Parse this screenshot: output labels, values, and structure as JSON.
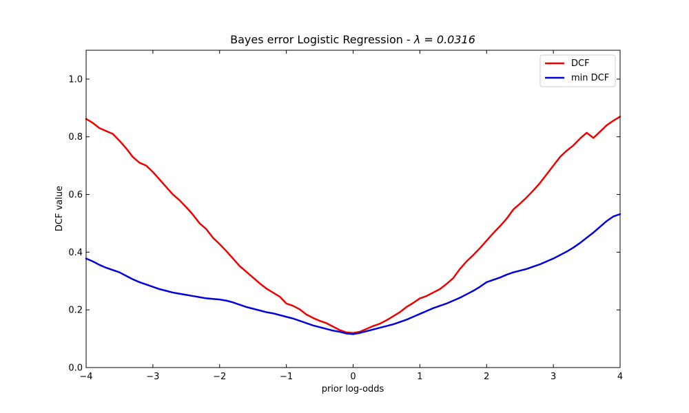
{
  "chart_data": {
    "type": "line",
    "title": "Bayes error Logistic Regression - ",
    "title_math": "λ = 0.0316",
    "xlabel": "prior log-odds",
    "ylabel": "DCF value",
    "xlim": [
      -4,
      4
    ],
    "ylim": [
      0,
      1.1
    ],
    "xticks": [
      -4,
      -3,
      -2,
      -1,
      0,
      1,
      2,
      3,
      4
    ],
    "xtick_labels": [
      "−4",
      "−3",
      "−2",
      "−1",
      "0",
      "1",
      "2",
      "3",
      "4"
    ],
    "yticks": [
      0.0,
      0.2,
      0.4,
      0.6,
      0.8,
      1.0
    ],
    "ytick_labels": [
      "0.0",
      "0.2",
      "0.4",
      "0.6",
      "0.8",
      "1.0"
    ],
    "grid": false,
    "legend_position": "top-right",
    "series": [
      {
        "name": "DCF",
        "color": "#ee0000",
        "x": [
          -4.0,
          -3.9,
          -3.8,
          -3.7,
          -3.6,
          -3.5,
          -3.4,
          -3.3,
          -3.2,
          -3.1,
          -3.0,
          -2.9,
          -2.8,
          -2.7,
          -2.6,
          -2.5,
          -2.4,
          -2.3,
          -2.2,
          -2.1,
          -2.0,
          -1.9,
          -1.8,
          -1.7,
          -1.6,
          -1.5,
          -1.4,
          -1.3,
          -1.2,
          -1.1,
          -1.0,
          -0.9,
          -0.8,
          -0.7,
          -0.6,
          -0.5,
          -0.4,
          -0.3,
          -0.2,
          -0.1,
          0.0,
          0.1,
          0.2,
          0.3,
          0.4,
          0.5,
          0.6,
          0.7,
          0.8,
          0.9,
          1.0,
          1.1,
          1.2,
          1.3,
          1.4,
          1.5,
          1.6,
          1.7,
          1.8,
          1.9,
          2.0,
          2.1,
          2.2,
          2.3,
          2.4,
          2.5,
          2.6,
          2.7,
          2.8,
          2.9,
          3.0,
          3.1,
          3.2,
          3.3,
          3.4,
          3.5,
          3.6,
          3.7,
          3.8,
          3.9,
          4.0
        ],
        "y": [
          0.862,
          0.848,
          0.83,
          0.82,
          0.81,
          0.786,
          0.76,
          0.73,
          0.71,
          0.7,
          0.678,
          0.652,
          0.626,
          0.6,
          0.58,
          0.556,
          0.53,
          0.5,
          0.48,
          0.45,
          0.428,
          0.404,
          0.378,
          0.352,
          0.332,
          0.312,
          0.292,
          0.274,
          0.26,
          0.246,
          0.222,
          0.214,
          0.202,
          0.184,
          0.172,
          0.162,
          0.154,
          0.142,
          0.13,
          0.122,
          0.12,
          0.124,
          0.134,
          0.144,
          0.152,
          0.164,
          0.178,
          0.192,
          0.21,
          0.224,
          0.24,
          0.248,
          0.26,
          0.272,
          0.29,
          0.31,
          0.342,
          0.368,
          0.39,
          0.414,
          0.44,
          0.466,
          0.49,
          0.516,
          0.548,
          0.568,
          0.59,
          0.614,
          0.64,
          0.67,
          0.7,
          0.73,
          0.752,
          0.77,
          0.794,
          0.814,
          0.796,
          0.818,
          0.84,
          0.856,
          0.87
        ]
      },
      {
        "name": "min DCF",
        "color": "#0000dd",
        "x": [
          -4.0,
          -3.9,
          -3.8,
          -3.7,
          -3.6,
          -3.5,
          -3.4,
          -3.3,
          -3.2,
          -3.1,
          -3.0,
          -2.9,
          -2.8,
          -2.7,
          -2.6,
          -2.5,
          -2.4,
          -2.3,
          -2.2,
          -2.1,
          -2.0,
          -1.9,
          -1.8,
          -1.7,
          -1.6,
          -1.5,
          -1.4,
          -1.3,
          -1.2,
          -1.1,
          -1.0,
          -0.9,
          -0.8,
          -0.7,
          -0.6,
          -0.5,
          -0.4,
          -0.3,
          -0.2,
          -0.1,
          0.0,
          0.1,
          0.2,
          0.3,
          0.4,
          0.5,
          0.6,
          0.7,
          0.8,
          0.9,
          1.0,
          1.1,
          1.2,
          1.3,
          1.4,
          1.5,
          1.6,
          1.7,
          1.8,
          1.9,
          2.0,
          2.1,
          2.2,
          2.3,
          2.4,
          2.5,
          2.6,
          2.7,
          2.8,
          2.9,
          3.0,
          3.1,
          3.2,
          3.3,
          3.4,
          3.5,
          3.6,
          3.7,
          3.8,
          3.9,
          4.0
        ],
        "y": [
          0.378,
          0.368,
          0.356,
          0.346,
          0.338,
          0.33,
          0.318,
          0.306,
          0.296,
          0.288,
          0.28,
          0.272,
          0.266,
          0.26,
          0.256,
          0.252,
          0.248,
          0.244,
          0.24,
          0.238,
          0.236,
          0.232,
          0.226,
          0.218,
          0.21,
          0.204,
          0.198,
          0.192,
          0.188,
          0.182,
          0.176,
          0.17,
          0.162,
          0.154,
          0.146,
          0.14,
          0.134,
          0.128,
          0.124,
          0.118,
          0.116,
          0.12,
          0.126,
          0.132,
          0.138,
          0.144,
          0.15,
          0.158,
          0.166,
          0.176,
          0.186,
          0.196,
          0.206,
          0.214,
          0.222,
          0.232,
          0.242,
          0.254,
          0.266,
          0.28,
          0.296,
          0.304,
          0.312,
          0.322,
          0.33,
          0.336,
          0.342,
          0.35,
          0.358,
          0.368,
          0.378,
          0.39,
          0.402,
          0.416,
          0.432,
          0.45,
          0.468,
          0.488,
          0.508,
          0.524,
          0.532
        ]
      }
    ]
  }
}
